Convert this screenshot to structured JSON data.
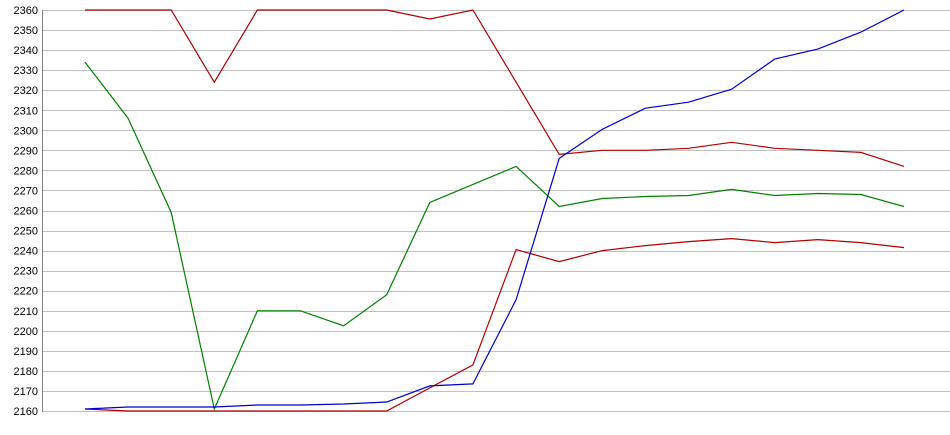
{
  "chart_data": {
    "type": "line",
    "title": "",
    "legend": {
      "visible": false
    },
    "grid": {
      "horizontal": true,
      "vertical": false
    },
    "x_axis": {
      "labels_visible": false,
      "points": 20
    },
    "y_axis": {
      "min": 2160,
      "max": 2360,
      "step": 10,
      "tick_labels": [
        "2360",
        "2350",
        "2340",
        "2330",
        "2320",
        "2310",
        "2300",
        "2290",
        "2280",
        "2270",
        "2260",
        "2250",
        "2240",
        "2230",
        "2220",
        "2210",
        "2200",
        "2190",
        "2180",
        "2170",
        "2160"
      ]
    },
    "series": [
      {
        "name": "red-upper",
        "color": "#B00000",
        "values": [
          2360,
          2360,
          2360,
          2324,
          2360,
          2360,
          2360,
          2360,
          2355.5,
          2360,
          2324,
          2288,
          2290,
          2290,
          2291,
          2294,
          2291,
          2290,
          2289,
          2282
        ]
      },
      {
        "name": "green",
        "color": "#008000",
        "values": [
          2334,
          2306,
          2259,
          2161,
          2210,
          2210,
          2202.5,
          2218,
          2264,
          2273,
          2282,
          2262,
          2266,
          2267,
          2267.5,
          2270.5,
          2267.5,
          2268.5,
          2268,
          2262
        ]
      },
      {
        "name": "red-lower",
        "color": "#B00000",
        "values": [
          2161,
          2160,
          2160,
          2160,
          2160,
          2160,
          2160,
          2160,
          2171.5,
          2183,
          2240.5,
          2234.5,
          2240,
          2242.5,
          2244.5,
          2246,
          2244,
          2245.5,
          2244,
          2241.5
        ]
      },
      {
        "name": "blue",
        "color": "#0000CC",
        "values": [
          2161,
          2162,
          2162,
          2162,
          2163,
          2163,
          2163.5,
          2164.5,
          2172.5,
          2173.5,
          2215.5,
          2286,
          2300.5,
          2311,
          2314,
          2320.5,
          2335.5,
          2340.5,
          2349,
          2360
        ]
      }
    ]
  },
  "colors": {
    "background": "#FFFFFF",
    "gridline": "#C0C0C0",
    "axis": "#808080",
    "label": "#000000"
  }
}
